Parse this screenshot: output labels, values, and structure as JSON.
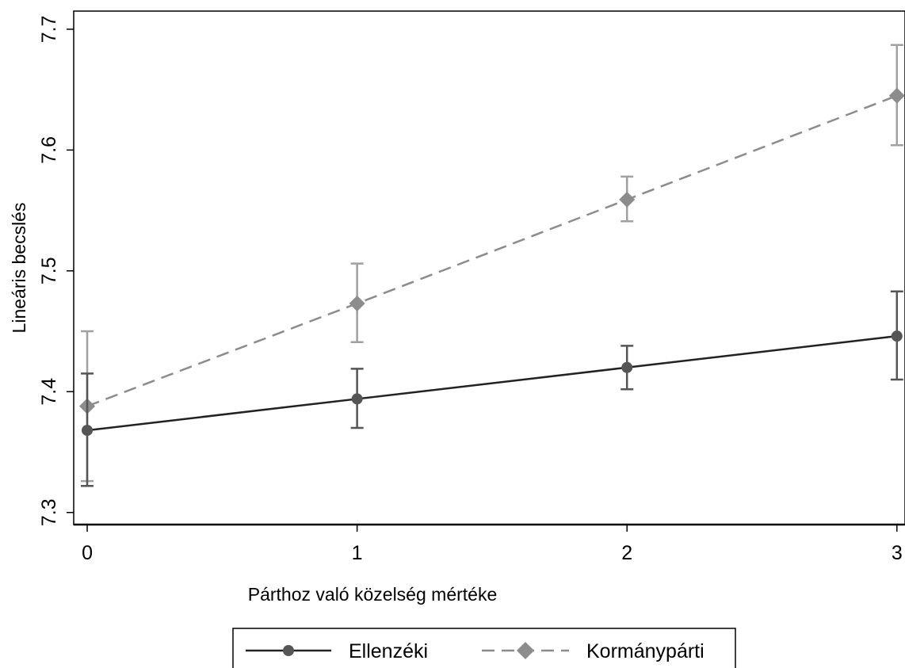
{
  "chart_data": {
    "type": "line",
    "title": "",
    "xlabel": "Párthoz való közelség mértéke",
    "ylabel": "Lineáris becslés",
    "x": [
      0,
      1,
      2,
      3
    ],
    "x_ticks": [
      "0",
      "1",
      "2",
      "3"
    ],
    "y_ticks": [
      "7.3",
      "7.4",
      "7.5",
      "7.6",
      "7.7"
    ],
    "ylim": [
      7.29,
      7.715
    ],
    "xlim": [
      -0.05,
      3.03
    ],
    "grid": false,
    "legend_position": "bottom",
    "series": [
      {
        "name": "Ellenzéki",
        "values": [
          7.368,
          7.394,
          7.42,
          7.446
        ],
        "ci_low": [
          7.322,
          7.37,
          7.402,
          7.41
        ],
        "ci_high": [
          7.415,
          7.419,
          7.438,
          7.483
        ],
        "color": "#222222",
        "marker_color": "#555555",
        "error_color": "#555555",
        "dash": "solid",
        "marker": "circle"
      },
      {
        "name": "Kormánypárti",
        "values": [
          7.388,
          7.473,
          7.559,
          7.645
        ],
        "ci_low": [
          7.326,
          7.441,
          7.541,
          7.604
        ],
        "ci_high": [
          7.45,
          7.506,
          7.578,
          7.687
        ],
        "color": "#8c8c8c",
        "marker_color": "#8c8c8c",
        "error_color": "#a0a0a0",
        "dash": "dashed",
        "marker": "diamond"
      }
    ]
  }
}
